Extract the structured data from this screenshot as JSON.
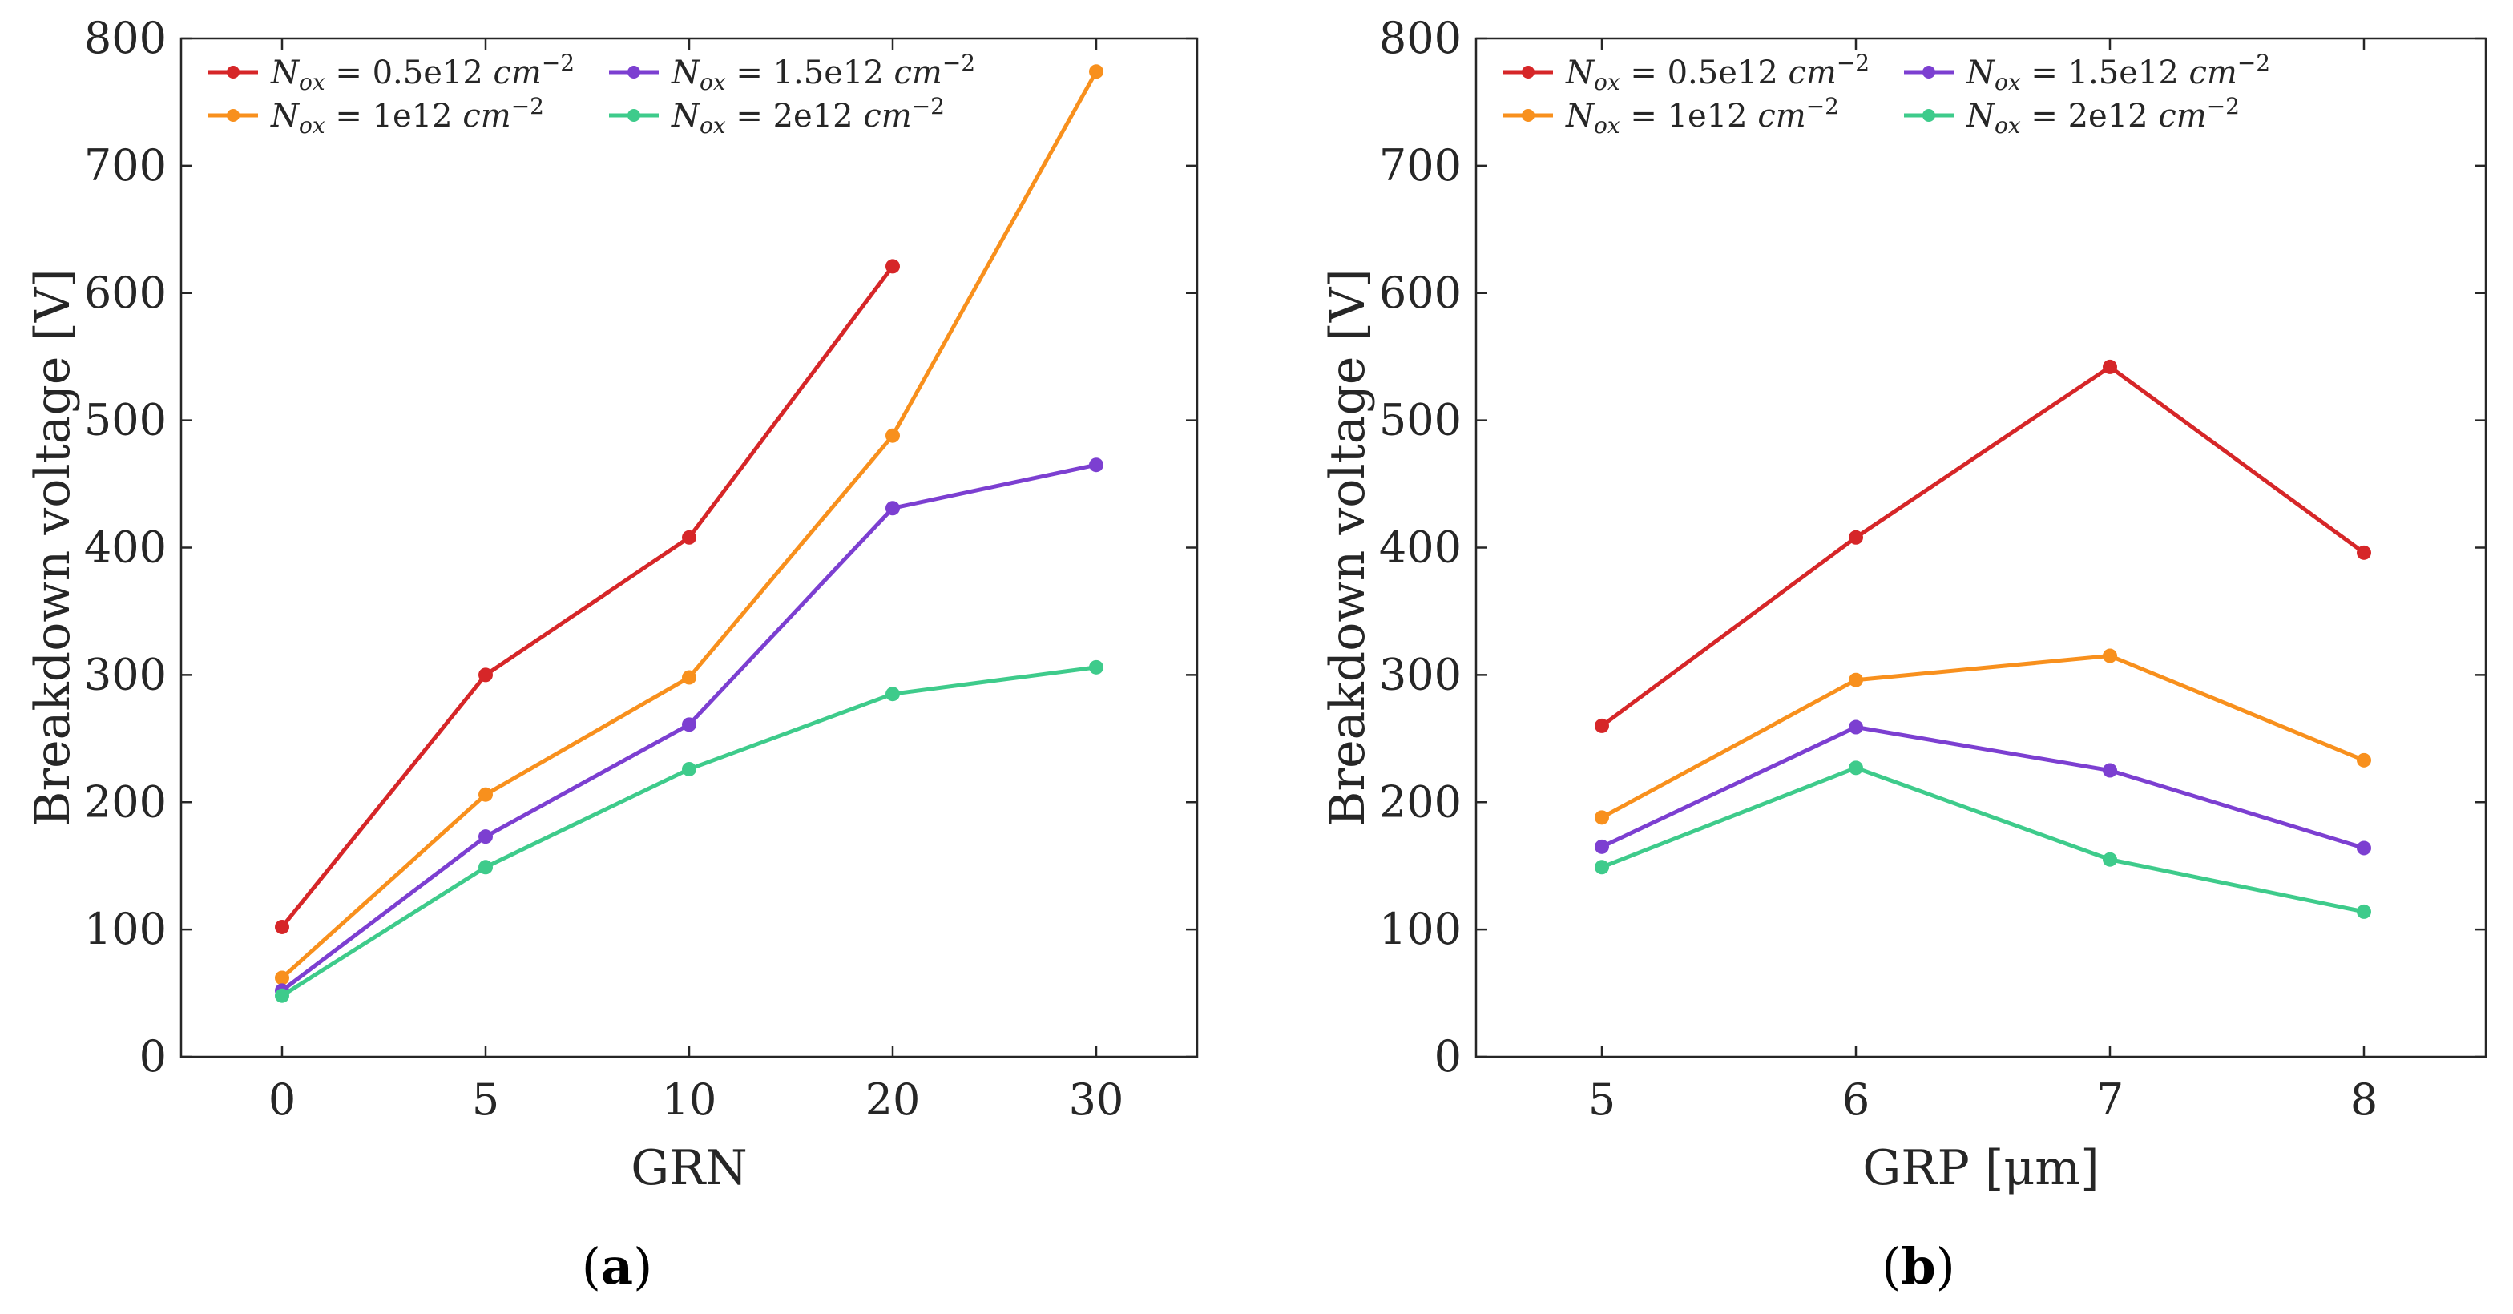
{
  "chart_data": [
    {
      "type": "line",
      "panel_label": {
        "open": "(",
        "letter": "a",
        "close": ")"
      },
      "xlabel": "GRN",
      "ylabel": "Breakdown voltage [V]",
      "categories": [
        "0",
        "5",
        "10",
        "20",
        "30"
      ],
      "ylim": [
        0,
        800
      ],
      "yticks": [
        0,
        100,
        200,
        300,
        400,
        500,
        600,
        700,
        800
      ],
      "grid": false,
      "legend_position": "top-left",
      "series": [
        {
          "name": "N_ox = 0.5e12 cm^-2",
          "name_parts": {
            "sym": "N",
            "sub": "ox",
            "eq": " = 0.5e12 ",
            "unit": "cm",
            "sup": "−2"
          },
          "color": "#d62628",
          "values": [
            102,
            300,
            408,
            621,
            null
          ]
        },
        {
          "name": "N_ox = 1e12 cm^-2",
          "name_parts": {
            "sym": "N",
            "sub": "ox",
            "eq": " = 1e12 ",
            "unit": "cm",
            "sup": "−2"
          },
          "color": "#f8901d",
          "values": [
            62,
            206,
            298,
            488,
            774
          ]
        },
        {
          "name": "N_ox = 1.5e12 cm^-2",
          "name_parts": {
            "sym": "N",
            "sub": "ox",
            "eq": " = 1.5e12 ",
            "unit": "cm",
            "sup": "−2"
          },
          "color": "#7c3fd1",
          "values": [
            52,
            173,
            261,
            431,
            465
          ]
        },
        {
          "name": "N_ox = 2e12 cm^-2",
          "name_parts": {
            "sym": "N",
            "sub": "ox",
            "eq": " = 2e12 ",
            "unit": "cm",
            "sup": "−2"
          },
          "color": "#3ecb8b",
          "values": [
            48,
            149,
            226,
            285,
            306
          ]
        }
      ]
    },
    {
      "type": "line",
      "panel_label": {
        "open": "(",
        "letter": "b",
        "close": ")"
      },
      "xlabel": "GRP [μm]",
      "ylabel": "Breakdown voltage [V]",
      "categories": [
        "5",
        "6",
        "7",
        "8"
      ],
      "ylim": [
        0,
        800
      ],
      "yticks": [
        0,
        100,
        200,
        300,
        400,
        500,
        600,
        700,
        800
      ],
      "grid": false,
      "legend_position": "top-left",
      "series": [
        {
          "name": "N_ox = 0.5e12 cm^-2",
          "name_parts": {
            "sym": "N",
            "sub": "ox",
            "eq": " = 0.5e12 ",
            "unit": "cm",
            "sup": "−2"
          },
          "color": "#d62628",
          "values": [
            260,
            408,
            542,
            396
          ]
        },
        {
          "name": "N_ox = 1e12 cm^-2",
          "name_parts": {
            "sym": "N",
            "sub": "ox",
            "eq": " = 1e12 ",
            "unit": "cm",
            "sup": "−2"
          },
          "color": "#f8901d",
          "values": [
            188,
            296,
            315,
            233
          ]
        },
        {
          "name": "N_ox = 1.5e12 cm^-2",
          "name_parts": {
            "sym": "N",
            "sub": "ox",
            "eq": " = 1.5e12 ",
            "unit": "cm",
            "sup": "−2"
          },
          "color": "#7c3fd1",
          "values": [
            165,
            259,
            225,
            164
          ]
        },
        {
          "name": "N_ox = 2e12 cm^-2",
          "name_parts": {
            "sym": "N",
            "sub": "ox",
            "eq": " = 2e12 ",
            "unit": "cm",
            "sup": "−2"
          },
          "color": "#3ecb8b",
          "values": [
            149,
            227,
            155,
            114
          ]
        }
      ]
    }
  ]
}
